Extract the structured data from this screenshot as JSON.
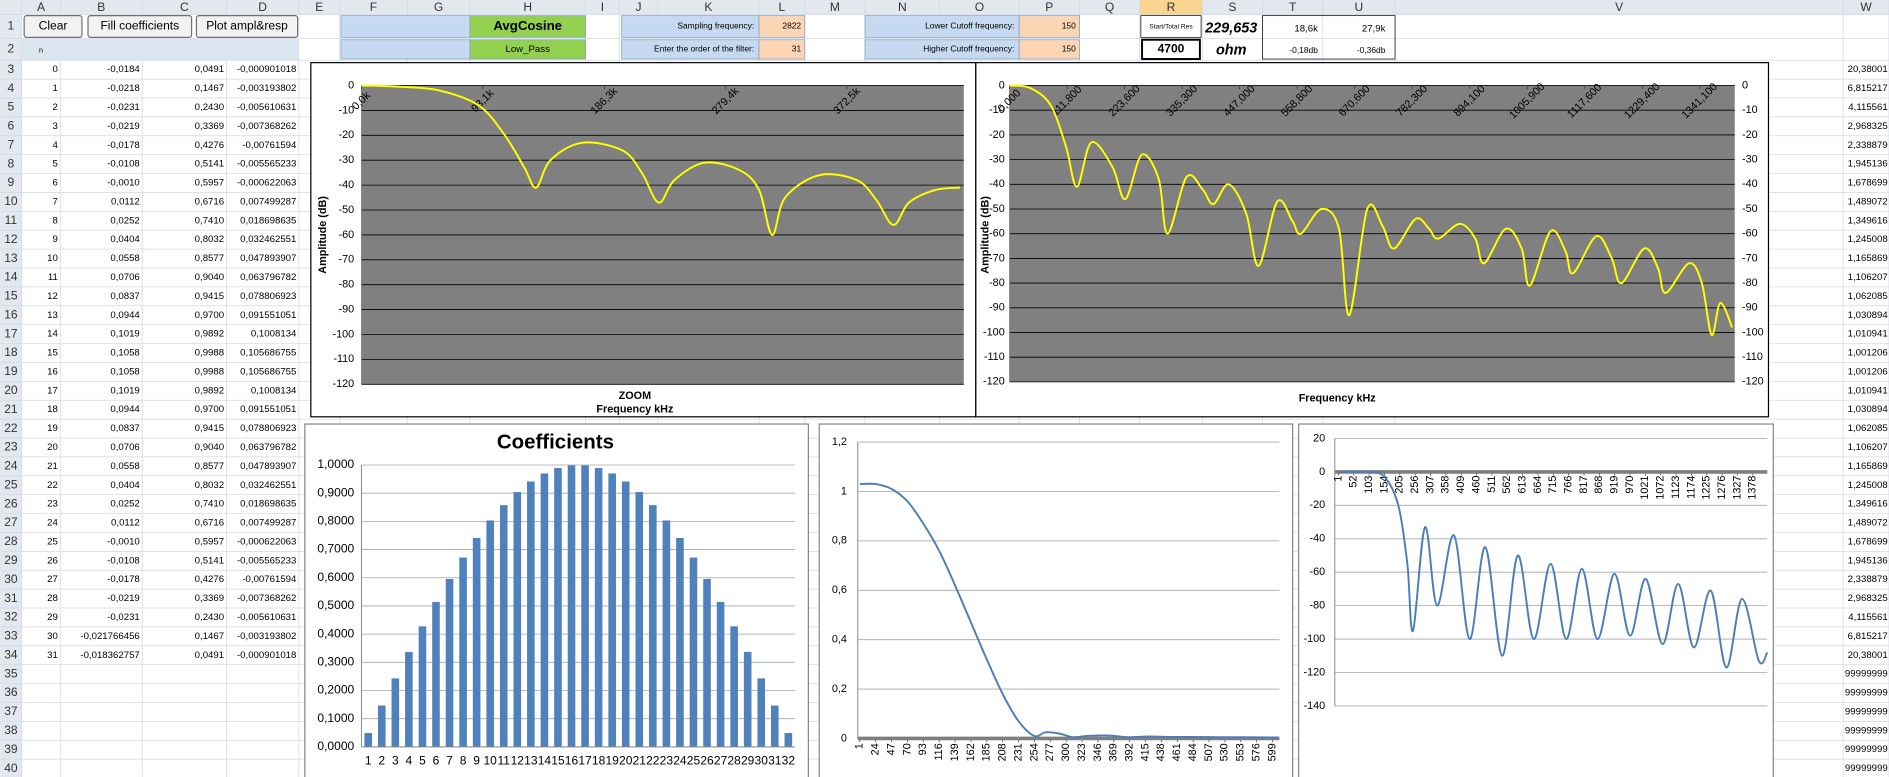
{
  "sheet": {
    "columns": [
      "A",
      "B",
      "C",
      "D",
      "E",
      "F",
      "G",
      "H",
      "I",
      "J",
      "K",
      "L",
      "M",
      "N",
      "O",
      "P",
      "Q",
      "R",
      "S",
      "T",
      "U",
      "V",
      "W"
    ],
    "row_numbers": [
      1,
      2,
      3,
      4,
      5,
      6,
      7,
      8,
      9,
      10,
      11,
      12,
      13,
      14,
      15,
      16,
      17,
      18,
      19,
      20,
      21,
      22,
      23,
      24,
      25,
      26,
      27,
      28,
      29,
      30,
      31,
      32,
      33,
      34,
      35,
      36,
      37,
      38,
      39,
      40
    ],
    "buttons": [
      "Clear",
      "Fill coefficients",
      "Plot ampl&resp"
    ],
    "cells": {
      "A2": "n",
      "H1": "AvgCosine",
      "H2": "Low_Pass",
      "K1": "Sampling frequency:",
      "L1": "2822",
      "K2": "Enter the order of the filter:",
      "L2": "31",
      "N1": "Lower Cutoff frequency:",
      "P1": "150",
      "N2": "Higher Cutoff frequency:",
      "P2": "150",
      "R1": "Start/Total Res",
      "S1": "229,653",
      "R2": "4700",
      "S2": "ohm",
      "T1": "18,6k",
      "U1": "27,9k",
      "T2": "-0,18db",
      "U2": "-0,36db"
    },
    "table": [
      [
        "0",
        "-0,0184",
        "0,0491",
        "-0,000901018"
      ],
      [
        "1",
        "-0,0218",
        "0,1467",
        "-0,003193802"
      ],
      [
        "2",
        "-0,0231",
        "0,2430",
        "-0,005610631"
      ],
      [
        "3",
        "-0,0219",
        "0,3369",
        "-0,007368262"
      ],
      [
        "4",
        "-0,0178",
        "0,4276",
        "-0,00761594"
      ],
      [
        "5",
        "-0,0108",
        "0,5141",
        "-0,005565233"
      ],
      [
        "6",
        "-0,0010",
        "0,5957",
        "-0,000622063"
      ],
      [
        "7",
        "0,0112",
        "0,6716",
        "0,007499287"
      ],
      [
        "8",
        "0,0252",
        "0,7410",
        "0,018698635"
      ],
      [
        "9",
        "0,0404",
        "0,8032",
        "0,032462551"
      ],
      [
        "10",
        "0,0558",
        "0,8577",
        "0,047893907"
      ],
      [
        "11",
        "0,0706",
        "0,9040",
        "0,063796782"
      ],
      [
        "12",
        "0,0837",
        "0,9415",
        "0,078806923"
      ],
      [
        "13",
        "0,0944",
        "0,9700",
        "0,091551051"
      ],
      [
        "14",
        "0,1019",
        "0,9892",
        "0,1008134"
      ],
      [
        "15",
        "0,1058",
        "0,9988",
        "0,105686755"
      ],
      [
        "16",
        "0,1058",
        "0,9988",
        "0,105686755"
      ],
      [
        "17",
        "0,1019",
        "0,9892",
        "0,1008134"
      ],
      [
        "18",
        "0,0944",
        "0,9700",
        "0,091551051"
      ],
      [
        "19",
        "0,0837",
        "0,9415",
        "0,078806923"
      ],
      [
        "20",
        "0,0706",
        "0,9040",
        "0,063796782"
      ],
      [
        "21",
        "0,0558",
        "0,8577",
        "0,047893907"
      ],
      [
        "22",
        "0,0404",
        "0,8032",
        "0,032462551"
      ],
      [
        "23",
        "0,0252",
        "0,7410",
        "0,018698635"
      ],
      [
        "24",
        "0,0112",
        "0,6716",
        "0,007499287"
      ],
      [
        "25",
        "-0,0010",
        "0,5957",
        "-0,000622063"
      ],
      [
        "26",
        "-0,0108",
        "0,5141",
        "-0,005565233"
      ],
      [
        "27",
        "-0,0178",
        "0,4276",
        "-0,00761594"
      ],
      [
        "28",
        "-0,0219",
        "0,3369",
        "-0,007368262"
      ],
      [
        "29",
        "-0,0231",
        "0,2430",
        "-0,005610631"
      ],
      [
        "30",
        "-0,021766456",
        "0,1467",
        "-0,003193802"
      ],
      [
        "31",
        "-0,018362757",
        "0,0491",
        "-0,000901018"
      ]
    ],
    "w_column": [
      "20,38001",
      "6,815217",
      "4,115561",
      "2,968325",
      "2,338879",
      "1,945136",
      "1,678699",
      "1,489072",
      "1,349616",
      "1,245008",
      "1,165869",
      "1,106207",
      "1,062085",
      "1,030894",
      "1,010941",
      "1,001206",
      "1,001206",
      "1,010941",
      "1,030894",
      "1,062085",
      "1,106207",
      "1,165869",
      "1,245008",
      "1,349616",
      "1,489072",
      "1,678699",
      "1,945136",
      "2,338879",
      "2,968325",
      "4,115561",
      "6,815217",
      "20,38001",
      "99999999",
      "99999999",
      "99999999",
      "99999999",
      "99999999",
      "99999999"
    ]
  },
  "chart_data": [
    {
      "type": "line",
      "annotation": "ZOOM",
      "xlabel": "Frequency kHz",
      "ylabel": "Amplitude (dB)",
      "color": "#ffff00",
      "plot_background": "#808080",
      "grid": true,
      "grid_color": "#000000",
      "x": [
        0,
        30,
        60,
        90,
        110,
        125,
        134,
        145,
        169,
        200,
        215,
        228,
        240,
        263,
        290,
        305,
        315,
        325,
        351,
        380,
        395,
        408,
        420,
        440,
        459
      ],
      "values": [
        0,
        -0.5,
        -2,
        -8,
        -20,
        -33,
        -41,
        -30,
        -23,
        -26,
        -35,
        -47,
        -38,
        -31,
        -34,
        -42,
        -60,
        -45,
        -36,
        -38,
        -46,
        -56,
        -47,
        -42,
        -41
      ],
      "xlim": [
        0,
        462
      ],
      "xticks": [
        {
          "value": 0,
          "label": "0,0k"
        },
        {
          "value": 93.1,
          "label": "93,1k"
        },
        {
          "value": 186.3,
          "label": "186,3k"
        },
        {
          "value": 279.4,
          "label": "279,4k"
        },
        {
          "value": 372.5,
          "label": "372,5k"
        }
      ],
      "ylim": [
        -120,
        0
      ],
      "yticks": [
        0,
        -10,
        -20,
        -30,
        -40,
        -50,
        -60,
        -70,
        -80,
        -90,
        -100,
        -110,
        -120
      ]
    },
    {
      "type": "line",
      "xlabel": "Frequency kHz",
      "ylabel": "Amplitude (dB)",
      "color": "#ffff00",
      "plot_background": "#808080",
      "grid": true,
      "grid_color": "#000000",
      "mirror_yticks": true,
      "x": [
        0,
        40,
        80,
        110,
        131,
        159,
        200,
        225,
        257,
        290,
        307,
        344,
        375,
        396,
        426,
        460,
        484,
        520,
        550,
        566,
        606,
        640,
        660,
        695,
        725,
        747,
        789,
        815,
        833,
        875,
        905,
        922,
        964,
        995,
        1011,
        1051,
        1080,
        1095,
        1140,
        1170,
        1189,
        1233,
        1260,
        1275,
        1320,
        1345,
        1364,
        1381,
        1404
      ],
      "values": [
        0,
        -1,
        -8,
        -25,
        -41,
        -23,
        -33,
        -46,
        -28,
        -38,
        -60,
        -37,
        -42,
        -48,
        -40,
        -52,
        -73,
        -47,
        -55,
        -60,
        -50,
        -58,
        -93,
        -50,
        -57,
        -66,
        -54,
        -58,
        -62,
        -56,
        -62,
        -72,
        -58,
        -66,
        -81,
        -59,
        -67,
        -76,
        -61,
        -70,
        -80,
        -66,
        -74,
        -84,
        -72,
        -80,
        -101,
        -88,
        -98
      ],
      "xlim": [
        0,
        1409
      ],
      "xticks": [
        {
          "value": 0,
          "label": "0,000"
        },
        {
          "value": 111.8,
          "label": "111,800"
        },
        {
          "value": 223.6,
          "label": "223,600"
        },
        {
          "value": 335.3,
          "label": "335,300"
        },
        {
          "value": 447,
          "label": "447,000"
        },
        {
          "value": 558.8,
          "label": "558,800"
        },
        {
          "value": 670.6,
          "label": "670,600"
        },
        {
          "value": 782.3,
          "label": "782,300"
        },
        {
          "value": 894.1,
          "label": "894,100"
        },
        {
          "value": 1005.9,
          "label": "1005,900"
        },
        {
          "value": 1117.6,
          "label": "1117,600"
        },
        {
          "value": 1229.4,
          "label": "1229,400"
        },
        {
          "value": 1341.1,
          "label": "1341,100"
        }
      ],
      "ylim": [
        -120,
        0
      ],
      "yticks": [
        0,
        -10,
        -20,
        -30,
        -40,
        -50,
        -60,
        -70,
        -80,
        -90,
        -100,
        -110,
        -120
      ]
    },
    {
      "type": "bar",
      "title": "Coefficients",
      "color": "#4f81bd",
      "grid": true,
      "grid_color": "#a6a6a6",
      "categories": [
        "1",
        "2",
        "3",
        "4",
        "5",
        "6",
        "7",
        "8",
        "9",
        "10",
        "11",
        "12",
        "13",
        "14",
        "15",
        "16",
        "17",
        "18",
        "19",
        "20",
        "21",
        "22",
        "23",
        "24",
        "25",
        "26",
        "27",
        "28",
        "29",
        "30",
        "31",
        "32"
      ],
      "values": [
        0.0491,
        0.1467,
        0.243,
        0.3369,
        0.4276,
        0.5141,
        0.5957,
        0.6716,
        0.741,
        0.8032,
        0.8577,
        0.904,
        0.9415,
        0.97,
        0.9892,
        0.9988,
        0.9988,
        0.9892,
        0.97,
        0.9415,
        0.904,
        0.8577,
        0.8032,
        0.741,
        0.6716,
        0.5957,
        0.5141,
        0.4276,
        0.3369,
        0.243,
        0.1467,
        0.0491
      ],
      "ylim": [
        0,
        1
      ],
      "yticks": [
        {
          "value": 0,
          "label": "0,0000"
        },
        {
          "value": 0.1,
          "label": "0,1000"
        },
        {
          "value": 0.2,
          "label": "0,2000"
        },
        {
          "value": 0.3,
          "label": "0,3000"
        },
        {
          "value": 0.4,
          "label": "0,4000"
        },
        {
          "value": 0.5,
          "label": "0,5000"
        },
        {
          "value": 0.6,
          "label": "0,6000"
        },
        {
          "value": 0.7,
          "label": "0,7000"
        },
        {
          "value": 0.8,
          "label": "0,8000"
        },
        {
          "value": 0.9,
          "label": "0,9000"
        },
        {
          "value": 1,
          "label": "1,0000"
        }
      ]
    },
    {
      "type": "line",
      "color": "#4a7ebb",
      "grid": true,
      "grid_color": "#a6a6a6",
      "x": [
        1,
        24,
        47,
        70,
        93,
        116,
        139,
        162,
        185,
        208,
        231,
        254,
        270,
        290,
        310,
        330,
        360,
        390,
        420,
        450,
        480,
        520,
        560,
        600,
        608
      ],
      "values": [
        1.03,
        1.03,
        1.01,
        0.96,
        0.87,
        0.76,
        0.62,
        0.47,
        0.32,
        0.18,
        0.07,
        0.01,
        0.025,
        0.02,
        0.005,
        0.01,
        0.012,
        0.005,
        0.008,
        0.006,
        0.006,
        0.005,
        0.005,
        0.004,
        0.004
      ],
      "xlim": [
        -2,
        609
      ],
      "xticks": [
        1,
        24,
        47,
        70,
        93,
        116,
        139,
        162,
        185,
        208,
        231,
        254,
        277,
        300,
        323,
        346,
        369,
        392,
        415,
        438,
        461,
        484,
        507,
        530,
        553,
        576,
        599
      ],
      "ylim": [
        0,
        1.2
      ],
      "yticks": [
        0,
        {
          "value": 0.2,
          "label": "0,2"
        },
        {
          "value": 0.4,
          "label": "0,4"
        },
        {
          "value": 0.6,
          "label": "0,6"
        },
        {
          "value": 0.8,
          "label": "0,8"
        },
        1,
        {
          "value": 1.2,
          "label": "1,2"
        }
      ]
    },
    {
      "type": "line",
      "color": "#4a7ebb",
      "grid": true,
      "grid_color": "#a6a6a6",
      "x": [
        1,
        100,
        154,
        200,
        230,
        249,
        289,
        329,
        385,
        437,
        489,
        545,
        597,
        650,
        706,
        758,
        810,
        862,
        918,
        970,
        1022,
        1078,
        1130,
        1182,
        1238,
        1290,
        1342,
        1398,
        1426
      ],
      "values": [
        0,
        0,
        -3,
        -20,
        -55,
        -95,
        -33,
        -80,
        -38,
        -100,
        -45,
        -110,
        -50,
        -100,
        -55,
        -100,
        -58,
        -100,
        -61,
        -98,
        -64,
        -103,
        -67,
        -105,
        -71,
        -117,
        -76,
        -113,
        -108
      ],
      "xlim": [
        -11,
        1426
      ],
      "xticks": [
        1,
        52,
        103,
        154,
        205,
        256,
        307,
        358,
        409,
        460,
        511,
        562,
        613,
        664,
        715,
        766,
        817,
        868,
        919,
        970,
        1021,
        1072,
        1123,
        1174,
        1225,
        1276,
        1327,
        1378
      ],
      "ylim": [
        -140,
        20
      ],
      "yticks": [
        20,
        0,
        -20,
        -40,
        -60,
        -80,
        -100,
        -120,
        -140
      ]
    }
  ]
}
